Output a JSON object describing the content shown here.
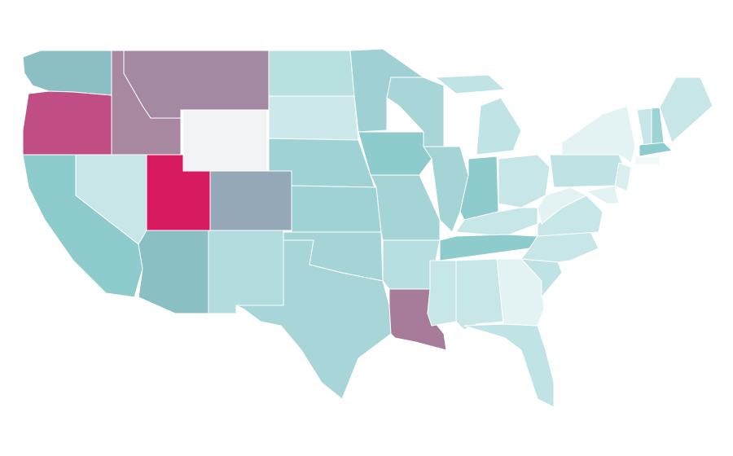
{
  "map": {
    "regions": [
      {
        "color": "#8bbfc4"
      },
      {
        "color": "#c04d84"
      },
      {
        "color": "#a788a0"
      },
      {
        "color": "#a38aa2"
      },
      {
        "color": "#f2f3f5"
      },
      {
        "color": "#c8e6e8"
      },
      {
        "color": "#8ecbcd"
      },
      {
        "color": "#d81b60"
      },
      {
        "color": "#95a8b8"
      },
      {
        "color": "#8abfc4"
      },
      {
        "color": "#b2dcde"
      },
      {
        "color": "#b9e0e1"
      },
      {
        "color": "#cde8eb"
      },
      {
        "color": "#9ed2d4"
      },
      {
        "color": "#9ed2d4"
      },
      {
        "color": "#a4d4d6"
      },
      {
        "color": "#a8d6d8"
      },
      {
        "color": "#9fd1d4"
      },
      {
        "color": "#8ecbcd"
      },
      {
        "color": "#a4d4d6"
      },
      {
        "color": "#b7dfe1"
      },
      {
        "color": "#a77c9a"
      },
      {
        "color": "#a8d6d8"
      },
      {
        "color": "#a4d4d6"
      },
      {
        "color": "#c0e3e5"
      },
      {
        "color": "#c0e3e5"
      },
      {
        "color": "#8ecbcd"
      },
      {
        "color": "#c6e6e8"
      },
      {
        "color": "#c6e6e8"
      },
      {
        "color": "#8ecbcd"
      },
      {
        "color": "#c6e6e8"
      },
      {
        "color": "#c6e6e8"
      },
      {
        "color": "#e3f2f3"
      },
      {
        "color": "#c0e3e5"
      },
      {
        "color": "#bfe2e4"
      },
      {
        "color": "#c6e6e8"
      },
      {
        "color": "#c6e6e8"
      },
      {
        "color": "#e3f2f3"
      },
      {
        "color": "#bfe2e4"
      },
      {
        "color": "#e3f2f3"
      },
      {
        "color": "#d8eeef"
      },
      {
        "color": "#e3f2f3"
      },
      {
        "color": "#c6e6e8"
      },
      {
        "color": "#9ed2d4"
      },
      {
        "color": "#c6e6e8"
      },
      {
        "color": "#8ecbcd"
      },
      {
        "color": "#f2f7f8"
      }
    ]
  }
}
